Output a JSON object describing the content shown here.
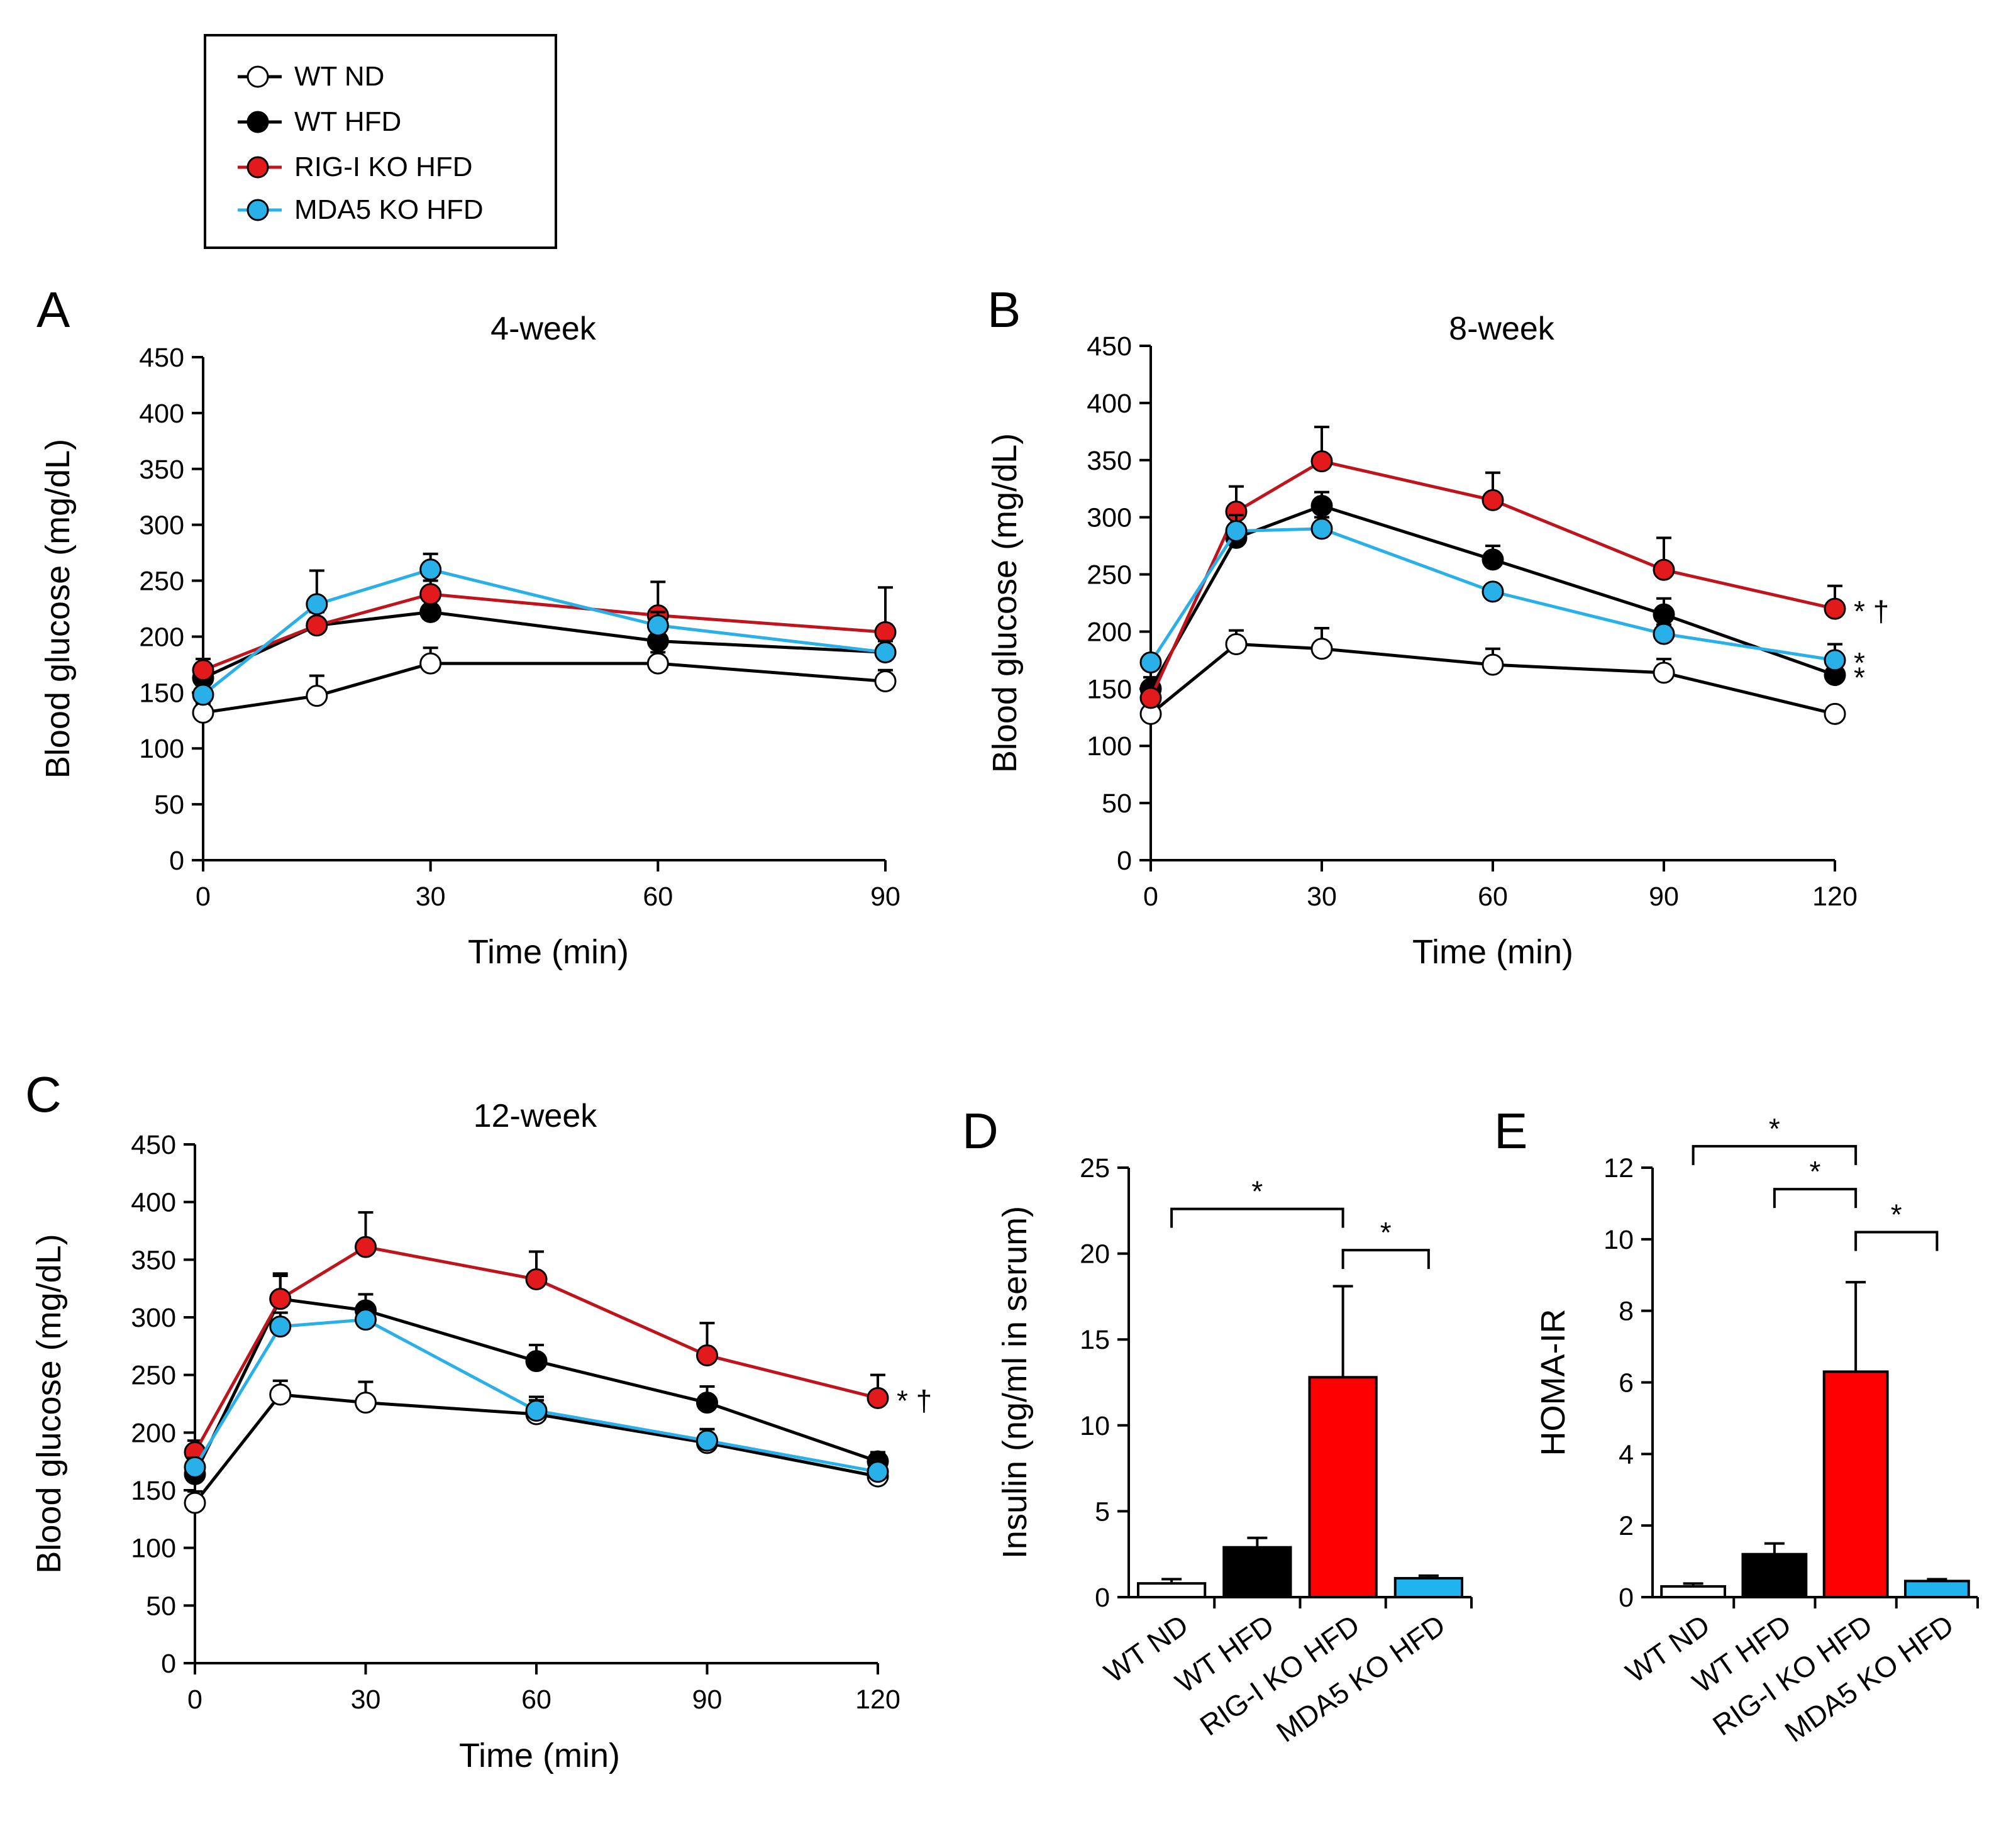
{
  "legend": {
    "entries": [
      {
        "name": "WT ND",
        "fill": "#ffffff"
      },
      {
        "name": "WT HFD",
        "fill": "#000000"
      },
      {
        "name": "RIG-I KO HFD",
        "fill": "#e31a1c"
      },
      {
        "name": "MDA5 KO HFD",
        "fill": "#2ab0e8"
      }
    ]
  },
  "colors": {
    "wt_nd_line": "#000000",
    "wt_hfd_line": "#000000",
    "rig_line": "#c0141c",
    "mda_line": "#2ab0e8",
    "rig_bar": "#ff0000",
    "mda_bar": "#1fb3ef"
  },
  "chart_data": [
    {
      "panel": "A",
      "type": "line",
      "title": "4-week",
      "xlabel": "Time (min)",
      "ylabel": "Blood glucose (mg/dL)",
      "x": [
        0,
        15,
        30,
        60,
        90
      ],
      "xticks": [
        0,
        30,
        60,
        90
      ],
      "xlim": [
        0,
        90
      ],
      "ylim": [
        0,
        450
      ],
      "yticks": [
        0,
        50,
        100,
        150,
        200,
        250,
        300,
        350,
        400,
        450
      ],
      "series": [
        {
          "name": "WT ND",
          "values": [
            132,
            147,
            176,
            176,
            160
          ],
          "errors": [
            8,
            18,
            14,
            10,
            10
          ]
        },
        {
          "name": "WT HFD",
          "values": [
            163,
            210,
            222,
            196,
            186
          ],
          "errors": [
            12,
            12,
            10,
            10,
            10
          ]
        },
        {
          "name": "RIG-I KO HFD",
          "values": [
            170,
            210,
            238,
            219,
            204
          ],
          "errors": [
            10,
            12,
            12,
            30,
            40
          ]
        },
        {
          "name": "MDA5 KO HFD",
          "values": [
            148,
            229,
            260,
            210,
            186
          ],
          "errors": [
            10,
            30,
            14,
            12,
            10
          ]
        }
      ]
    },
    {
      "panel": "B",
      "type": "line",
      "title": "8-week",
      "xlabel": "Time (min)",
      "ylabel": "Blood glucose (mg/dL)",
      "x": [
        0,
        15,
        30,
        60,
        90,
        120
      ],
      "xticks": [
        0,
        30,
        60,
        90,
        120
      ],
      "xlim": [
        0,
        120
      ],
      "ylim": [
        0,
        450
      ],
      "yticks": [
        0,
        50,
        100,
        150,
        200,
        250,
        300,
        350,
        400,
        450
      ],
      "series": [
        {
          "name": "WT ND",
          "values": [
            128,
            189,
            185,
            171,
            164,
            128
          ],
          "errors": [
            6,
            12,
            18,
            14,
            12,
            5
          ],
          "annotation": ""
        },
        {
          "name": "WT HFD",
          "values": [
            150,
            282,
            310,
            263,
            215,
            162
          ],
          "errors": [
            10,
            18,
            12,
            12,
            14,
            6
          ],
          "annotation": "*"
        },
        {
          "name": "RIG-I KO HFD",
          "values": [
            142,
            305,
            349,
            315,
            254,
            220
          ],
          "errors": [
            10,
            22,
            30,
            24,
            28,
            20
          ],
          "annotation": "* †"
        },
        {
          "name": "MDA5 KO HFD",
          "values": [
            173,
            288,
            290,
            235,
            198,
            175
          ],
          "errors": [
            6,
            14,
            10,
            6,
            8,
            14
          ],
          "annotation": "*"
        }
      ]
    },
    {
      "panel": "C",
      "type": "line",
      "title": "12-week",
      "xlabel": "Time (min)",
      "ylabel": "Blood glucose (mg/dL)",
      "x": [
        0,
        15,
        30,
        60,
        90,
        120
      ],
      "xticks": [
        0,
        30,
        60,
        90,
        120
      ],
      "xlim": [
        0,
        120
      ],
      "ylim": [
        0,
        450
      ],
      "yticks": [
        0,
        50,
        100,
        150,
        200,
        250,
        300,
        350,
        400,
        450
      ],
      "series": [
        {
          "name": "WT ND",
          "values": [
            139,
            233,
            226,
            216,
            191,
            162
          ],
          "errors": [
            10,
            12,
            18,
            12,
            12,
            6
          ],
          "annotation": ""
        },
        {
          "name": "WT HFD",
          "values": [
            164,
            316,
            306,
            262,
            226,
            175
          ],
          "errors": [
            10,
            20,
            14,
            14,
            14,
            8
          ],
          "annotation": ""
        },
        {
          "name": "RIG-I KO HFD",
          "values": [
            183,
            316,
            361,
            333,
            267,
            230
          ],
          "errors": [
            10,
            22,
            30,
            24,
            28,
            20
          ],
          "annotation": "* †"
        },
        {
          "name": "MDA5 KO HFD",
          "values": [
            170,
            292,
            298,
            219,
            193,
            166
          ],
          "errors": [
            8,
            12,
            10,
            12,
            10,
            6
          ],
          "annotation": ""
        }
      ]
    },
    {
      "panel": "D",
      "type": "bar",
      "xlabel": "",
      "ylabel": "Insulin (ng/ml in serum)",
      "categories": [
        "WT ND",
        "WT HFD",
        "RIG-I KO HFD",
        "MDA5 KO HFD"
      ],
      "values": [
        0.8,
        2.9,
        12.8,
        1.1
      ],
      "errors": [
        0.25,
        0.55,
        5.3,
        0.15
      ],
      "ylim": [
        0,
        25
      ],
      "yticks": [
        0,
        5,
        10,
        15,
        20,
        25
      ],
      "significance": [
        {
          "from": 0,
          "to": 2,
          "level": 22.6,
          "label": "*"
        },
        {
          "from": 2,
          "to": 3,
          "level": 20.2,
          "label": "*"
        }
      ]
    },
    {
      "panel": "E",
      "type": "bar",
      "xlabel": "",
      "ylabel": "HOMA-IR",
      "categories": [
        "WT ND",
        "WT HFD",
        "RIG-I KO HFD",
        "MDA5 KO HFD"
      ],
      "values": [
        0.3,
        1.2,
        6.3,
        0.45
      ],
      "errors": [
        0.08,
        0.3,
        2.5,
        0.05
      ],
      "ylim": [
        0,
        12
      ],
      "yticks": [
        0,
        2,
        4,
        6,
        8,
        10,
        12
      ],
      "significance": [
        {
          "from": 0,
          "to": 2,
          "level": 12.6,
          "label": "*"
        },
        {
          "from": 1,
          "to": 2,
          "level": 11.4,
          "label": "*"
        },
        {
          "from": 2,
          "to": 3,
          "level": 10.2,
          "label": "*"
        }
      ]
    }
  ]
}
